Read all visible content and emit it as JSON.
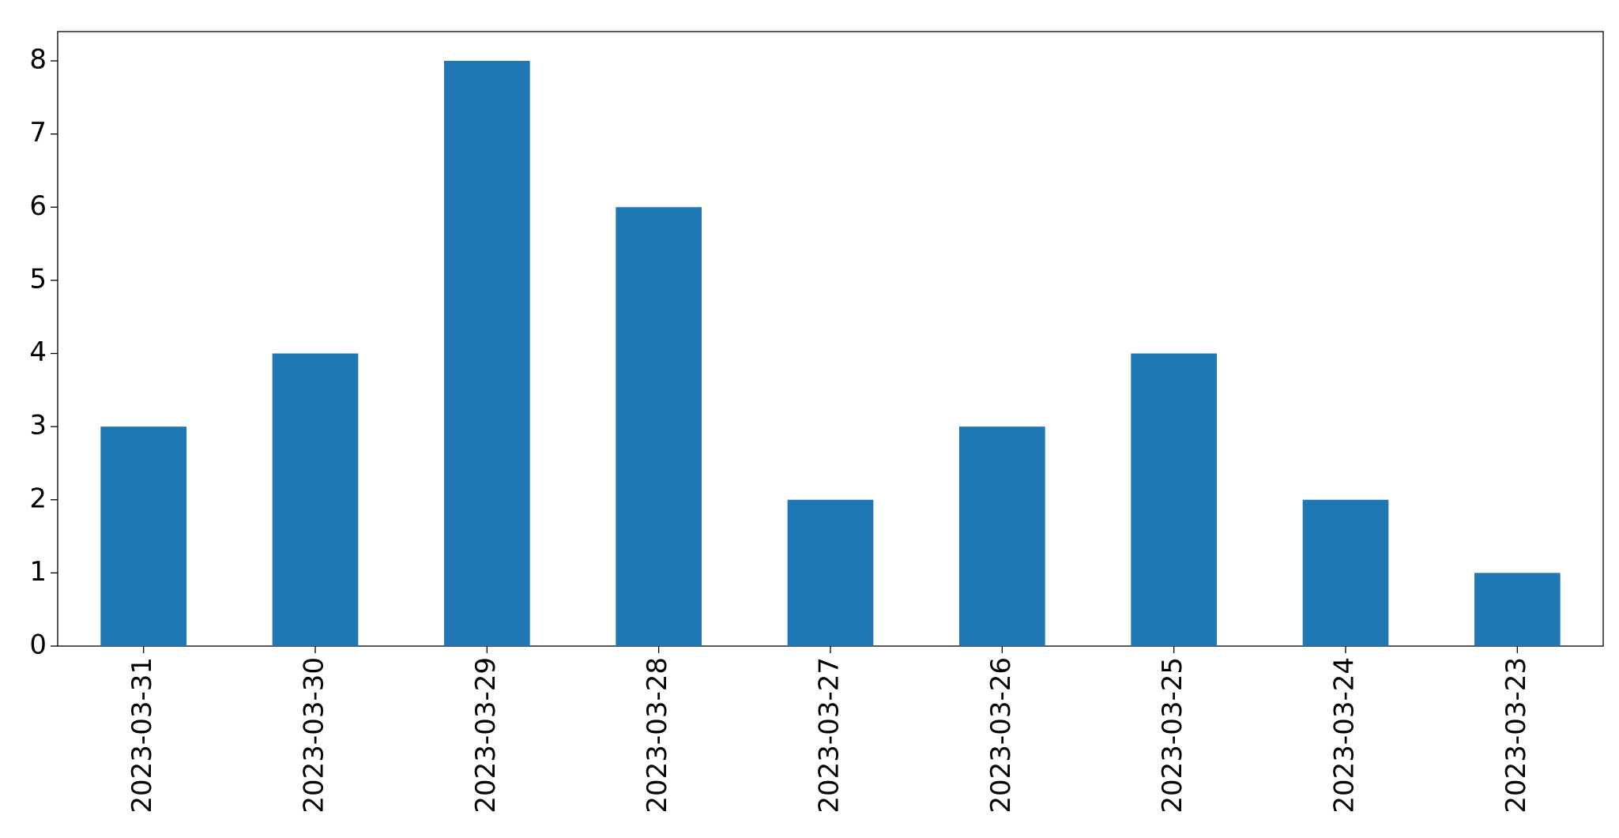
{
  "chart_data": {
    "type": "bar",
    "categories": [
      "2023-03-31",
      "2023-03-30",
      "2023-03-29",
      "2023-03-28",
      "2023-03-27",
      "2023-03-26",
      "2023-03-25",
      "2023-03-24",
      "2023-03-23"
    ],
    "values": [
      3,
      4,
      8,
      6,
      2,
      3,
      4,
      2,
      1
    ],
    "color": "#1f77b4",
    "ylim": [
      0,
      8.4
    ],
    "yticks": [
      0,
      1,
      2,
      3,
      4,
      5,
      6,
      7,
      8
    ],
    "grid": false
  }
}
